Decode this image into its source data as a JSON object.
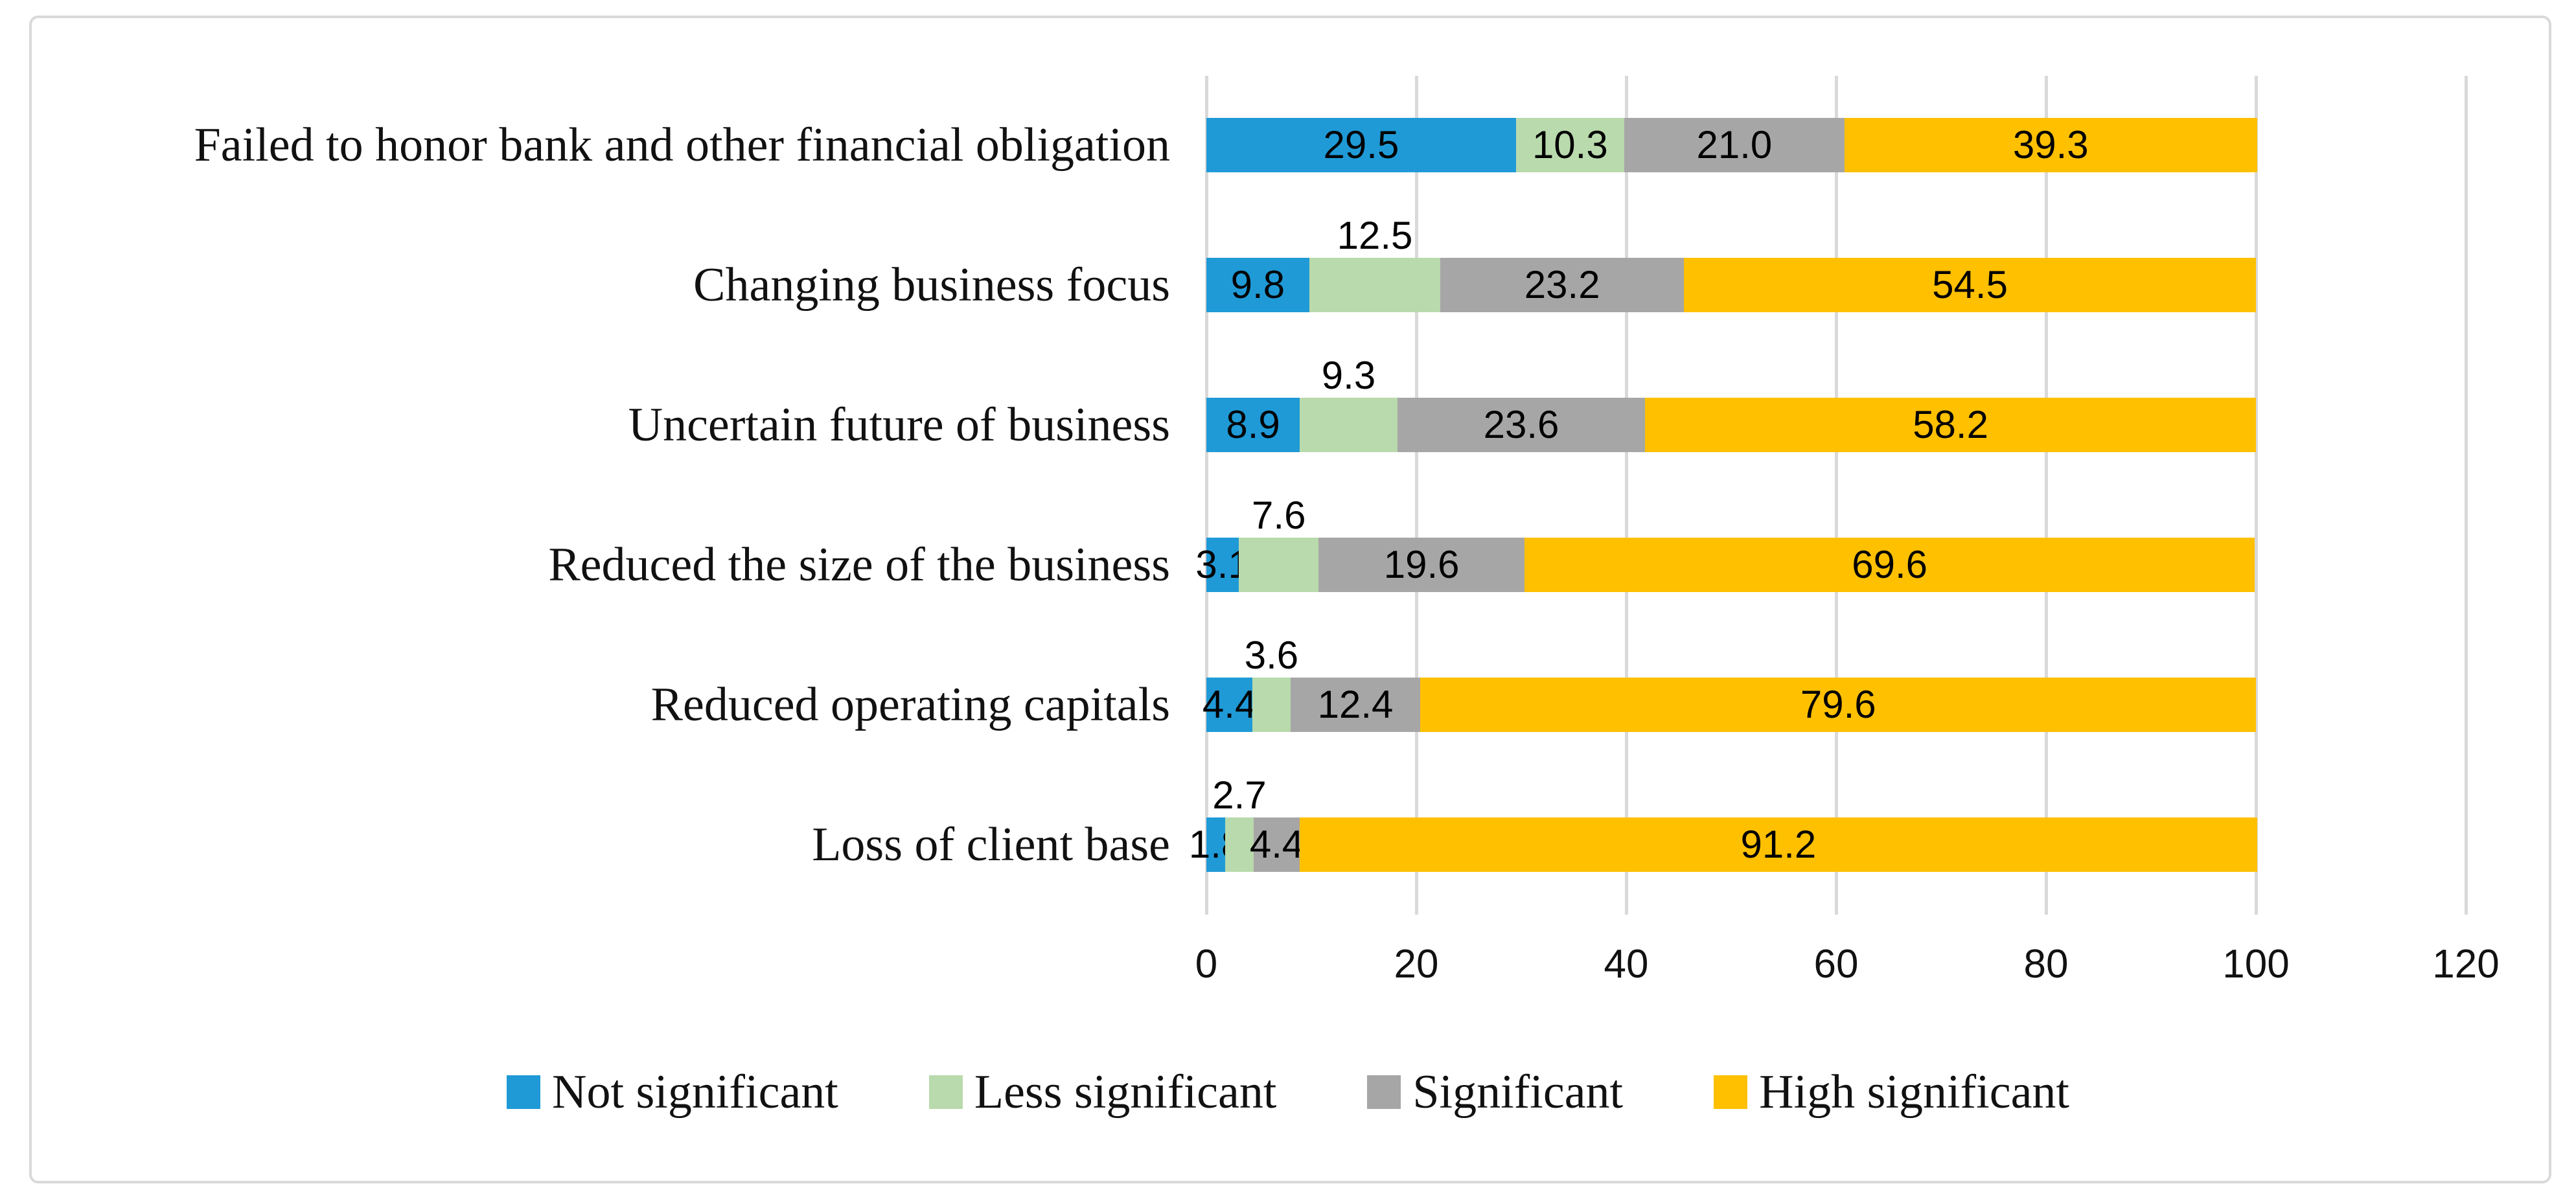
{
  "chart_data": {
    "type": "bar",
    "orientation": "horizontal",
    "stacked": true,
    "title": "",
    "xlabel": "",
    "ylabel": "",
    "grid": "vertical",
    "categories": [
      "Failed to honor bank and other financial obligation",
      "Changing business focus",
      "Uncertain future of business",
      "Reduced the size of the business",
      "Reduced operating capitals",
      "Loss of client base"
    ],
    "series": [
      {
        "name": "Not significant",
        "color": "#1F9AD7",
        "values": [
          29.5,
          9.8,
          8.9,
          3.1,
          4.4,
          1.8
        ],
        "value_labels": [
          "29.5",
          "9.8",
          "8.9",
          "3.1",
          "4.4",
          "1.8"
        ],
        "label_positions": [
          "inside",
          "inside",
          "inside",
          "inside",
          "inside",
          "inside"
        ]
      },
      {
        "name": "Less significant",
        "color": "#B9DAAC",
        "values": [
          10.3,
          12.5,
          9.3,
          7.6,
          3.6,
          2.7
        ],
        "value_labels": [
          "10.3",
          "12.5",
          "9.3",
          "7.6",
          "3.6",
          "2.7"
        ],
        "label_positions": [
          "inside",
          "above",
          "above",
          "above",
          "above",
          "above"
        ]
      },
      {
        "name": "Significant",
        "color": "#A6A6A6",
        "values": [
          21.0,
          23.2,
          23.6,
          19.6,
          12.4,
          4.4
        ],
        "value_labels": [
          "21.0",
          "23.2",
          "23.6",
          "19.6",
          "12.4",
          "4.4"
        ],
        "label_positions": [
          "inside",
          "inside",
          "inside",
          "inside",
          "inside",
          "inside"
        ]
      },
      {
        "name": "High significant",
        "color": "#FFC000",
        "values": [
          39.3,
          54.5,
          58.2,
          69.6,
          79.6,
          91.2
        ],
        "value_labels": [
          "39.3",
          "54.5",
          "58.2",
          "69.6",
          "79.6",
          "91.2"
        ],
        "label_positions": [
          "inside",
          "inside",
          "inside",
          "inside",
          "inside",
          "inside"
        ]
      }
    ],
    "x_axis": {
      "range": [
        0,
        120
      ],
      "ticks": [
        0,
        20,
        40,
        60,
        80,
        100,
        120
      ],
      "tick_labels": [
        "0",
        "20",
        "40",
        "60",
        "80",
        "100",
        "120"
      ]
    },
    "legend": {
      "position": "bottom",
      "entries": [
        "Not significant",
        "Less significant",
        "Significant",
        "High significant"
      ]
    },
    "colors": {
      "gridline": "#D9D9D9",
      "figure_border": "#D9D9D9",
      "text": "#111111"
    }
  }
}
